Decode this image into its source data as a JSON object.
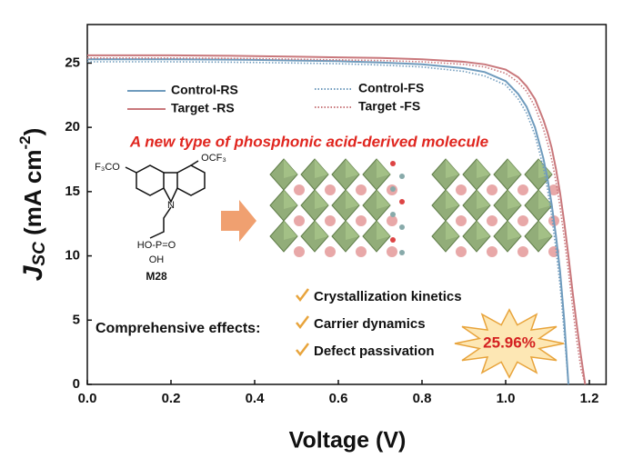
{
  "chart_data": {
    "type": "line",
    "xlabel": "Voltage (V)",
    "ylabel": {
      "main": "J",
      "sub": "SC",
      "unit": " (mA cm",
      "sup": "-2",
      "close": ")"
    },
    "x": [
      0,
      0.1,
      0.2,
      0.3,
      0.4,
      0.5,
      0.6,
      0.7,
      0.8,
      0.9,
      0.95,
      1.0,
      1.03,
      1.05,
      1.07,
      1.09,
      1.1,
      1.11,
      1.12,
      1.13,
      1.14,
      1.15,
      1.16,
      1.17,
      1.18,
      1.19
    ],
    "series": [
      {
        "name": "Control-RS",
        "color": "#6f9bbd",
        "dash": "solid",
        "values": [
          25.3,
          25.3,
          25.3,
          25.28,
          25.25,
          25.2,
          25.15,
          25.05,
          24.9,
          24.6,
          24.3,
          23.6,
          22.6,
          21.6,
          20.0,
          17.6,
          16.0,
          14.0,
          11.6,
          8.8,
          5.0,
          0,
          null,
          null,
          null,
          null
        ]
      },
      {
        "name": "Target -RS",
        "color": "#c9787c",
        "dash": "solid",
        "values": [
          25.6,
          25.6,
          25.6,
          25.58,
          25.55,
          25.5,
          25.45,
          25.4,
          25.3,
          25.1,
          24.9,
          24.5,
          23.9,
          23.2,
          22.2,
          20.6,
          19.6,
          18.4,
          16.8,
          14.9,
          12.6,
          10.0,
          7.2,
          4.6,
          2.2,
          0
        ]
      },
      {
        "name": "Control-FS",
        "color": "#6f9bbd",
        "dash": "dotted",
        "values": [
          25.1,
          25.1,
          25.1,
          25.08,
          25.05,
          25.0,
          24.95,
          24.85,
          24.7,
          24.35,
          24.0,
          23.3,
          22.2,
          21.1,
          19.4,
          16.9,
          15.2,
          13.1,
          10.6,
          7.7,
          4.0,
          0,
          null,
          null,
          null,
          null
        ]
      },
      {
        "name": "Target -FS",
        "color": "#c9787c",
        "dash": "dotted",
        "values": [
          25.4,
          25.4,
          25.4,
          25.38,
          25.35,
          25.3,
          25.25,
          25.2,
          25.1,
          24.9,
          24.7,
          24.2,
          23.5,
          22.8,
          21.6,
          19.9,
          18.8,
          17.5,
          15.8,
          13.8,
          11.4,
          8.8,
          6.0,
          3.4,
          1.2,
          0
        ]
      }
    ],
    "xlim": [
      0,
      1.24
    ],
    "ylim": [
      0,
      28
    ],
    "xticks": [
      {
        "value": 0,
        "label": "0.0"
      },
      0.2,
      0.4,
      0.6,
      0.8,
      {
        "value": 1,
        "label": "1.0"
      },
      1.2
    ],
    "yticks": [
      0,
      5,
      10,
      15,
      20,
      25
    ],
    "annotations": {
      "headline": "A new type of phosphonic acid-derived molecule",
      "molecule": {
        "left_group": "F₃CO",
        "right_group": "OCF₃",
        "nitrogen": "N",
        "acid": "HO-P=O",
        "hydroxyl": "OH",
        "name": "M28"
      },
      "effects_title": "Comprehensive effects:",
      "effects": [
        "Crystallization kinetics",
        "Carrier dynamics",
        "Defect passivation"
      ],
      "efficiency": "25.96%"
    }
  }
}
